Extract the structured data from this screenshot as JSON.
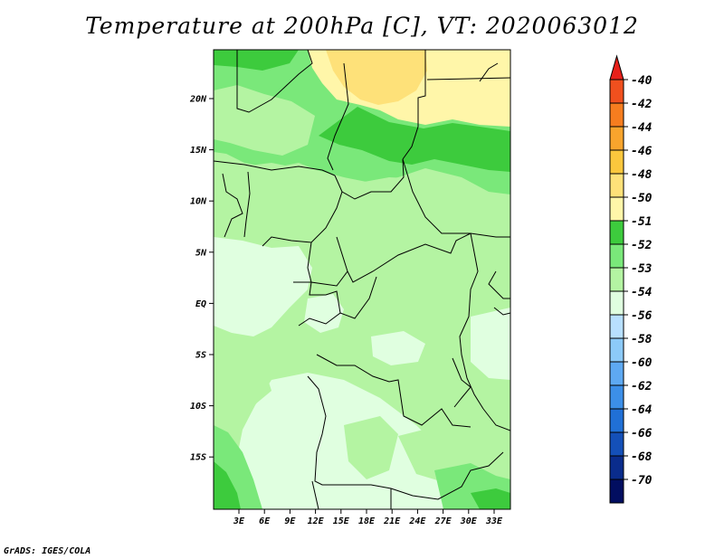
{
  "title": "Temperature at 200hPa [C], VT: 2020063012",
  "credit": "GrADS: IGES/COLA",
  "map": {
    "lon_ticks": [
      "3E",
      "6E",
      "9E",
      "12E",
      "15E",
      "18E",
      "21E",
      "24E",
      "27E",
      "30E",
      "33E"
    ],
    "lat_ticks": [
      "20N",
      "15N",
      "10N",
      "5N",
      "EQ",
      "5S",
      "10S",
      "15S"
    ]
  },
  "legend": {
    "levels": [
      "-40",
      "-42",
      "-44",
      "-46",
      "-48",
      "-50",
      "-51",
      "-52",
      "-53",
      "-54",
      "-56",
      "-58",
      "-60",
      "-62",
      "-64",
      "-66",
      "-68",
      "-70"
    ],
    "colors": [
      "#e6201a",
      "#f0501e",
      "#f67d1f",
      "#f8a42d",
      "#fbc73d",
      "#fee179",
      "#fff6a9",
      "#3dcb3d",
      "#7ae87a",
      "#b4f4a2",
      "#e0ffe0",
      "#b8e0ff",
      "#8ccaf8",
      "#5ea9f2",
      "#3c8fe8",
      "#2070d6",
      "#1450b8",
      "#0a2c8c",
      "#020e60",
      "#e0def2"
    ]
  },
  "style": {
    "pale": "#e0ffe0",
    "light": "#b4f4a2",
    "mid": "#7ae87a",
    "dark": "#3dcb3d",
    "yellow": "#fff6a9",
    "deepyellow": "#fee179"
  }
}
